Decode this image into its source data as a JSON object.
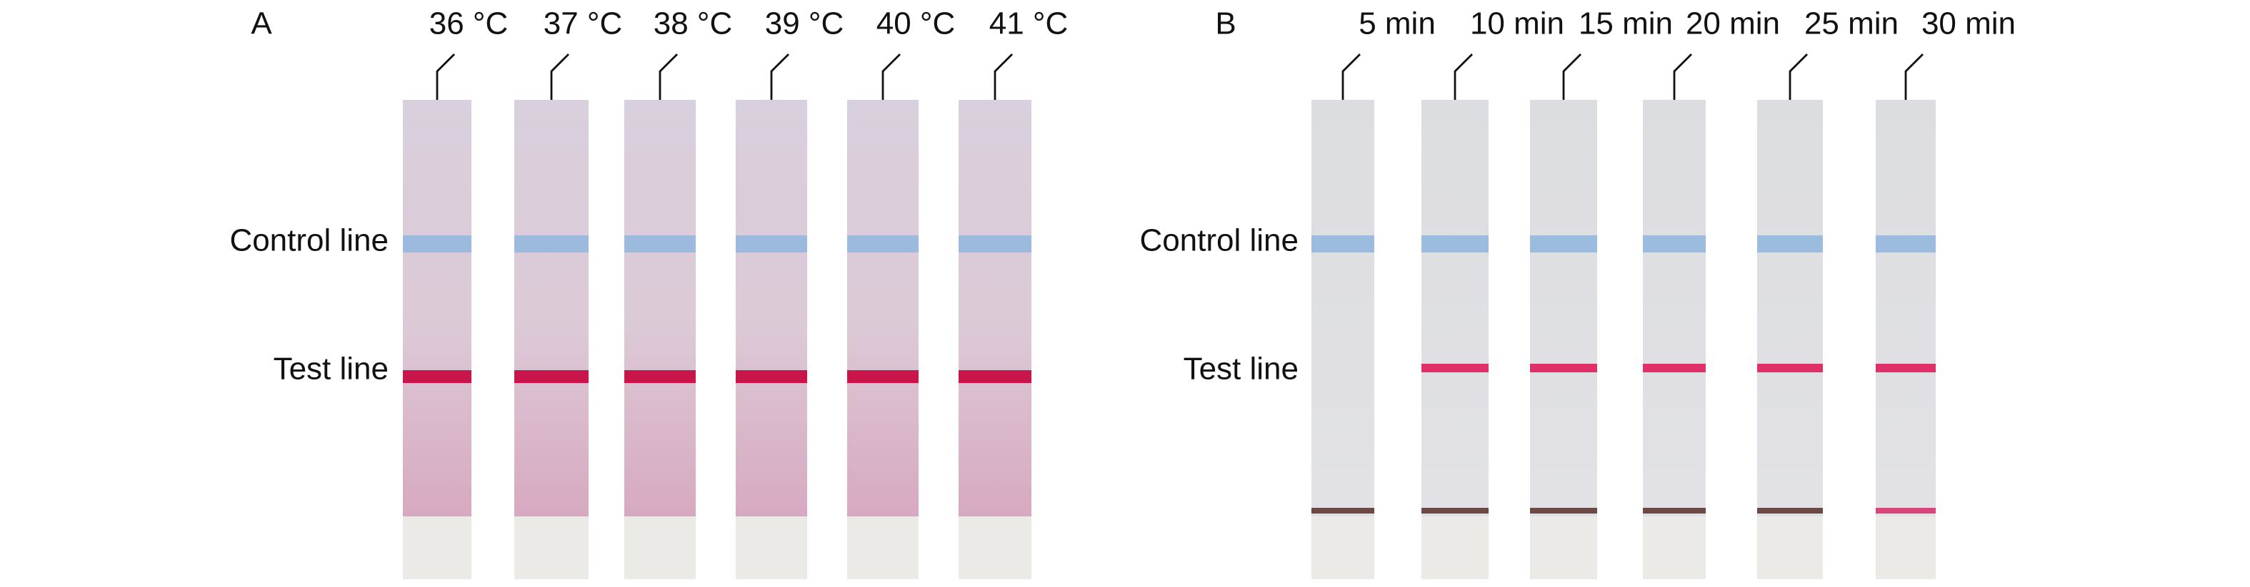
{
  "panels": [
    {
      "label": "A",
      "strips": [
        "36 °C",
        "37 °C",
        "38 °C",
        "39 °C",
        "40 °C",
        "41 °C"
      ],
      "row_labels": [
        "Control line",
        "Test line"
      ]
    },
    {
      "label": "B",
      "strips": [
        "5 min",
        "10 min",
        "15 min",
        "20 min",
        "25 min",
        "30 min"
      ],
      "row_labels": [
        "Control line",
        "Test line"
      ]
    }
  ]
}
